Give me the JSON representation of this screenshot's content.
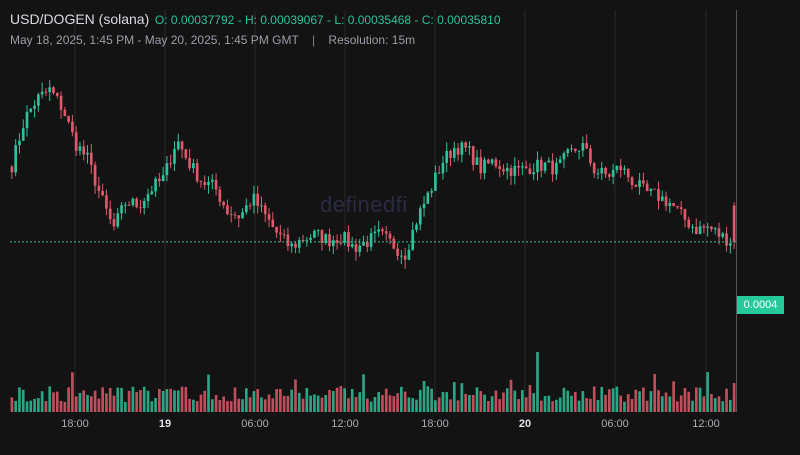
{
  "header": {
    "pair": "USD/DOGEN (solana)",
    "ohlc": "O: 0.00037792 - H: 0.00039067 - L: 0.00035468 - C: 0.00035810",
    "date_range": "May 18, 2025, 1:45 PM - May 20, 2025, 1:45 PM GMT",
    "separator": "|",
    "resolution": "Resolution: 15m"
  },
  "watermark": "definedfi",
  "current_price_label": "0.0004",
  "colors": {
    "background": "#131313",
    "up": "#2fc19a",
    "down": "#e0596a",
    "price_badge": "#26c99a",
    "grid": "#2a2a2a"
  },
  "chart_data": {
    "type": "candlestick",
    "title": "USD/DOGEN (solana)",
    "resolution": "15m",
    "time_range": [
      "2025-05-18 13:45 GMT",
      "2025-05-20 13:45 GMT"
    ],
    "x_tick_labels": [
      "18:00",
      "19",
      "06:00",
      "12:00",
      "18:00",
      "20",
      "06:00",
      "12:00"
    ],
    "x_tick_bold": [
      false,
      true,
      false,
      false,
      false,
      true,
      false,
      false
    ],
    "last_close": 0.0003581,
    "ohlc_last": {
      "open": 0.00037792,
      "high": 0.00039067,
      "low": 0.00035468,
      "close": 0.0003581
    },
    "ylim": [
      0.00031,
      0.00046
    ],
    "close_path": [
      0.0004,
      0.000425,
      0.000436,
      0.000441,
      0.000431,
      0.000412,
      0.000403,
      0.000383,
      0.000365,
      0.00038,
      0.000378,
      0.000387,
      0.000393,
      0.000414,
      0.000401,
      0.000391,
      0.000388,
      0.000375,
      0.000372,
      0.000382,
      0.000372,
      0.000362,
      0.000355,
      0.00036,
      0.000362,
      0.000359,
      0.000361,
      0.000355,
      0.000358,
      0.000362,
      0.000357,
      0.000351,
      0.000371,
      0.000386,
      0.000402,
      0.00041,
      0.000408,
      0.000398,
      0.000402,
      0.000398,
      0.000397,
      0.000399,
      0.0004,
      0.000398,
      0.000406,
      0.000411,
      0.000397,
      0.000394,
      0.000399,
      0.000391,
      0.000385,
      0.000383,
      0.000379,
      0.000371,
      0.000365,
      0.000366,
      0.000361,
      0.000358
    ],
    "series": [
      {
        "name": "Price",
        "kind": "candles"
      },
      {
        "name": "Volume",
        "kind": "bars"
      }
    ]
  }
}
